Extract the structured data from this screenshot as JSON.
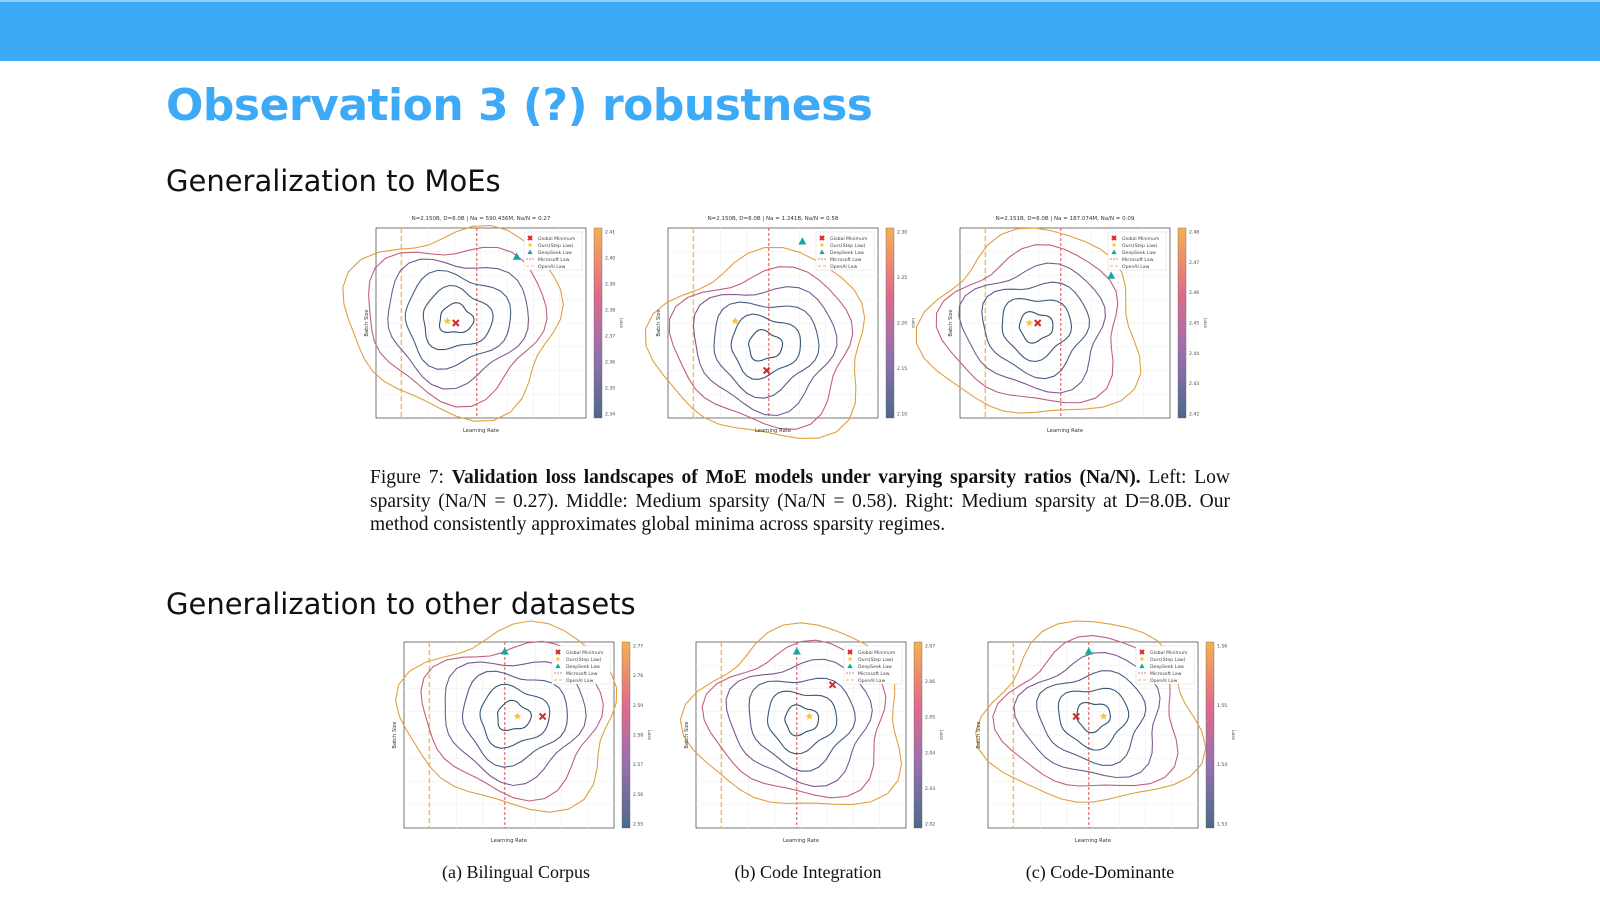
{
  "slide": {
    "title": "Observation 3 (?) robustness",
    "section_moe": "Generalization to MoEs",
    "section_datasets": "Generalization to other datasets"
  },
  "figure7": {
    "label": "Figure 7:",
    "bold": "Validation loss landscapes of MoE models under varying sparsity ratios (Na/N).",
    "rest": " Left: Low sparsity (Na/N = 0.27). Middle: Medium sparsity (Na/N = 0.58). Right: Medium sparsity at D=8.0B. Our method consistently approximates global minima across sparsity regimes."
  },
  "plot_labels": {
    "xlabel": "Learning Rate",
    "ylabel": "Batch Size",
    "colorbar_label": "Loss",
    "legend": [
      "Global Minimum",
      "Ours(Step Law)",
      "DeepSeek Law",
      "Microsoft Law",
      "OpenAI Law"
    ]
  },
  "moe_plots": [
    {
      "title": "N=2.150B, D=8.0B | Na = 590.436M, Na/N = 0.27",
      "colorbar_ticks": [
        "2.41",
        "2.40",
        "2.39",
        "2.38",
        "2.37",
        "2.36",
        "2.35",
        "2.34"
      ]
    },
    {
      "title": "N=2.150B, D=8.0B | Na = 1.241B, Na/N = 0.58",
      "colorbar_ticks": [
        "2.30",
        "2.25",
        "2.20",
        "2.15",
        "2.10"
      ]
    },
    {
      "title": "N=2.151B, D=8.0B | Na = 187.074M, Na/N = 0.09",
      "colorbar_ticks": [
        "2.48",
        "2.47",
        "2.46",
        "2.45",
        "2.44",
        "2.43",
        "2.42"
      ]
    }
  ],
  "dataset_plots": [
    {
      "caption": "(a) Bilingual Corpus",
      "colorbar_ticks": [
        "2.77",
        "2.76",
        "2.59",
        "2.58",
        "2.57",
        "2.56",
        "2.55"
      ]
    },
    {
      "caption": "(b) Code Integration",
      "colorbar_ticks": [
        "2.07",
        "2.06",
        "2.05",
        "2.04",
        "2.03",
        "2.02"
      ]
    },
    {
      "caption": "(c) Code-Dominante",
      "colorbar_ticks": [
        "1.56",
        "1.55",
        "1.54",
        "1.53"
      ]
    }
  ],
  "colors": {
    "accent": "#3daaf7",
    "global_minimum": "#d62728",
    "ours": "#f5c542",
    "deepseek": "#17a7a0",
    "microsoft_line": "#e05050",
    "openai_line": "#f0a030"
  }
}
